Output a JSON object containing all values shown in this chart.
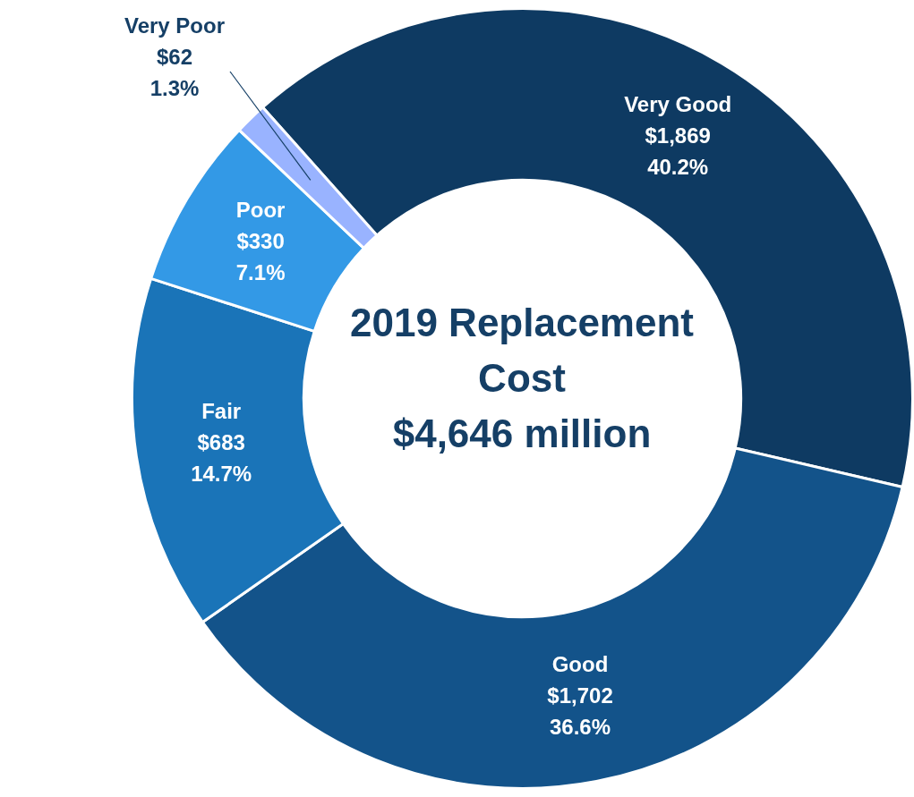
{
  "chart_data": {
    "type": "donut",
    "title": "2019 Replacement Cost",
    "subtitle": "$4,646 million",
    "categories": [
      "Very Good",
      "Good",
      "Fair",
      "Poor",
      "Very Poor"
    ],
    "values": [
      1869,
      1702,
      683,
      330,
      62
    ],
    "colors": [
      "#0e3a62",
      "#13538a",
      "#1a74b8",
      "#3399e6",
      "#99b3ff"
    ],
    "value_labels": [
      "$1,869\n40.2%",
      "$1,702\n36.6%",
      "$683\n14.7%",
      "$330\n7.1%",
      "$62\n1.3%"
    ]
  }
}
